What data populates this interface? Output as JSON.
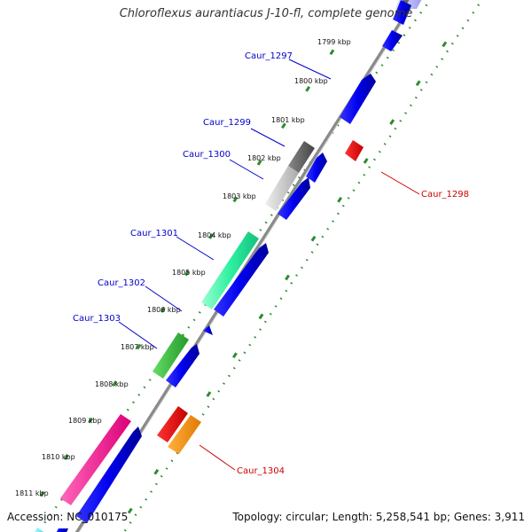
{
  "title": "Chloroflexus aurantiacus J-10-fl, complete genome",
  "footer": {
    "accession": "Accession: NC_010175",
    "topology": "Topology: circular; Length: 5,258,541 bp; Genes: 3,911"
  },
  "ticks": [
    {
      "label": "1799 kbp",
      "kbp": 1799
    },
    {
      "label": "1800 kbp",
      "kbp": 1800
    },
    {
      "label": "1801 kbp",
      "kbp": 1801
    },
    {
      "label": "1802 kbp",
      "kbp": 1802
    },
    {
      "label": "1803 kbp",
      "kbp": 1803
    },
    {
      "label": "1804 kbp",
      "kbp": 1804
    },
    {
      "label": "1805 kbp",
      "kbp": 1805
    },
    {
      "label": "1806 kbp",
      "kbp": 1806
    },
    {
      "label": "1807 kbp",
      "kbp": 1807
    },
    {
      "label": "1808 kbp",
      "kbp": 1808
    },
    {
      "label": "1809 kbp",
      "kbp": 1809
    },
    {
      "label": "1810 kbp",
      "kbp": 1810
    },
    {
      "label": "1811 kbp",
      "kbp": 1811
    }
  ],
  "gene_labels": [
    {
      "name": "Caur_1297",
      "color": "#0000cc",
      "side": "outer"
    },
    {
      "name": "Caur_1299",
      "color": "#0000cc",
      "side": "outer"
    },
    {
      "name": "Caur_1300",
      "color": "#0000cc",
      "side": "outer"
    },
    {
      "name": "Caur_1301",
      "color": "#0000cc",
      "side": "outer"
    },
    {
      "name": "Caur_1302",
      "color": "#0000cc",
      "side": "outer"
    },
    {
      "name": "Caur_1303",
      "color": "#0000cc",
      "side": "outer"
    },
    {
      "name": "Caur_1298",
      "color": "#cc0000",
      "side": "inner"
    },
    {
      "name": "Caur_1304",
      "color": "#cc0000",
      "side": "inner"
    }
  ],
  "colors": {
    "forward_cds": "#0000ee",
    "reverse_cds": "#ee0000",
    "backbone": "#8a8a8a",
    "tick_marks": "#2e8b2e",
    "outer_label": "#0000cc",
    "inner_label": "#cc0000"
  }
}
